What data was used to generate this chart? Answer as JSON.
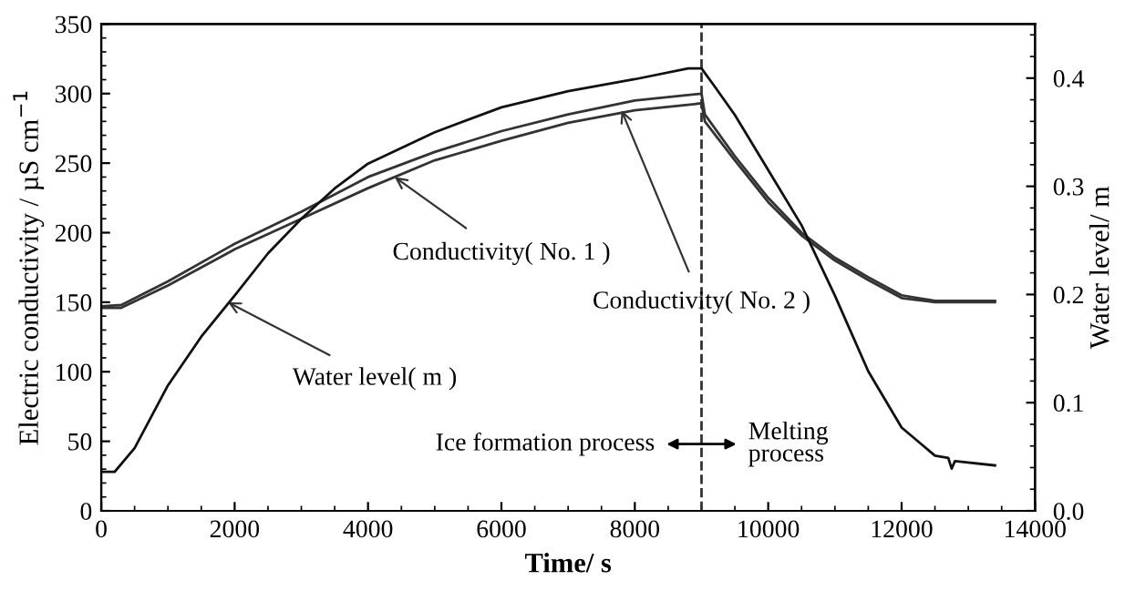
{
  "chart_data": {
    "type": "line",
    "xlabel": "Time/ s",
    "ylabel": "Electric conductivity / µS cm$^{−1}$",
    "y2label": "Water level/ m",
    "series": [
      {
        "color": "#111111",
        "axis": "y2",
        "x": [
          0,
          200,
          500,
          1000,
          1500,
          2000,
          2500,
          3000,
          3500,
          4000,
          5000,
          6000,
          7000,
          8000,
          8800,
          9000,
          9200,
          9500,
          10000,
          10500,
          11000,
          11500,
          12000,
          12500,
          12700,
          12750,
          12800,
          13400
        ],
        "values": [
          0.036,
          0.036,
          0.058,
          0.116,
          0.161,
          0.199,
          0.238,
          0.27,
          0.298,
          0.321,
          0.35,
          0.373,
          0.388,
          0.399,
          0.409,
          0.409,
          0.392,
          0.366,
          0.315,
          0.264,
          0.199,
          0.129,
          0.077,
          0.051,
          0.049,
          0.039,
          0.046,
          0.042
        ]
      },
      {
        "color": "#333333",
        "x": [
          0,
          300,
          1000,
          2000,
          3000,
          4000,
          5000,
          6000,
          7000,
          8000,
          9000,
          9050,
          9500,
          10000,
          10500,
          11000,
          11500,
          12000,
          12500,
          13400
        ],
        "values": [
          146,
          146,
          162,
          188,
          210,
          232,
          252,
          266,
          279,
          288,
          293,
          280,
          252,
          222,
          198,
          180,
          166,
          153,
          150,
          150
        ]
      },
      {
        "color": "#333333",
        "x": [
          0,
          300,
          1000,
          2000,
          3000,
          4000,
          5000,
          6000,
          7000,
          8000,
          9000,
          9050,
          9500,
          10000,
          10500,
          11000,
          11500,
          12000,
          12500,
          13400
        ],
        "values": [
          147,
          148,
          165,
          192,
          215,
          240,
          258,
          273,
          285,
          295,
          300,
          285,
          255,
          225,
          200,
          182,
          168,
          155,
          151,
          151
        ]
      }
    ],
    "xlim": [
      0,
      14000
    ],
    "xticks": [
      0,
      2000,
      4000,
      6000,
      8000,
      10000,
      12000,
      14000
    ],
    "ylim": [
      0,
      350
    ],
    "yticks": [
      0,
      50,
      100,
      150,
      200,
      250,
      300,
      350
    ],
    "y2lim": [
      0,
      0.45
    ],
    "y2ticks": [
      {
        "value": 0,
        "label": "0.0"
      },
      0.1,
      0.2,
      0.3,
      0.4
    ],
    "ref_lines": [
      {
        "axis": "x",
        "value": 9000,
        "line_style": "dashed",
        "color": "#333333"
      }
    ],
    "annotations": [
      {
        "text": "Conductivity( No. 1 )",
        "x": 4400,
        "y": 240
      },
      {
        "text": "Conductivity( No. 2 )",
        "x": 7800,
        "y": 288
      },
      {
        "text": "Water level( m )",
        "x": 1900,
        "y": 150
      },
      "Ice formation process",
      "Melting\nprocess"
    ],
    "grid": false,
    "legend": false
  }
}
